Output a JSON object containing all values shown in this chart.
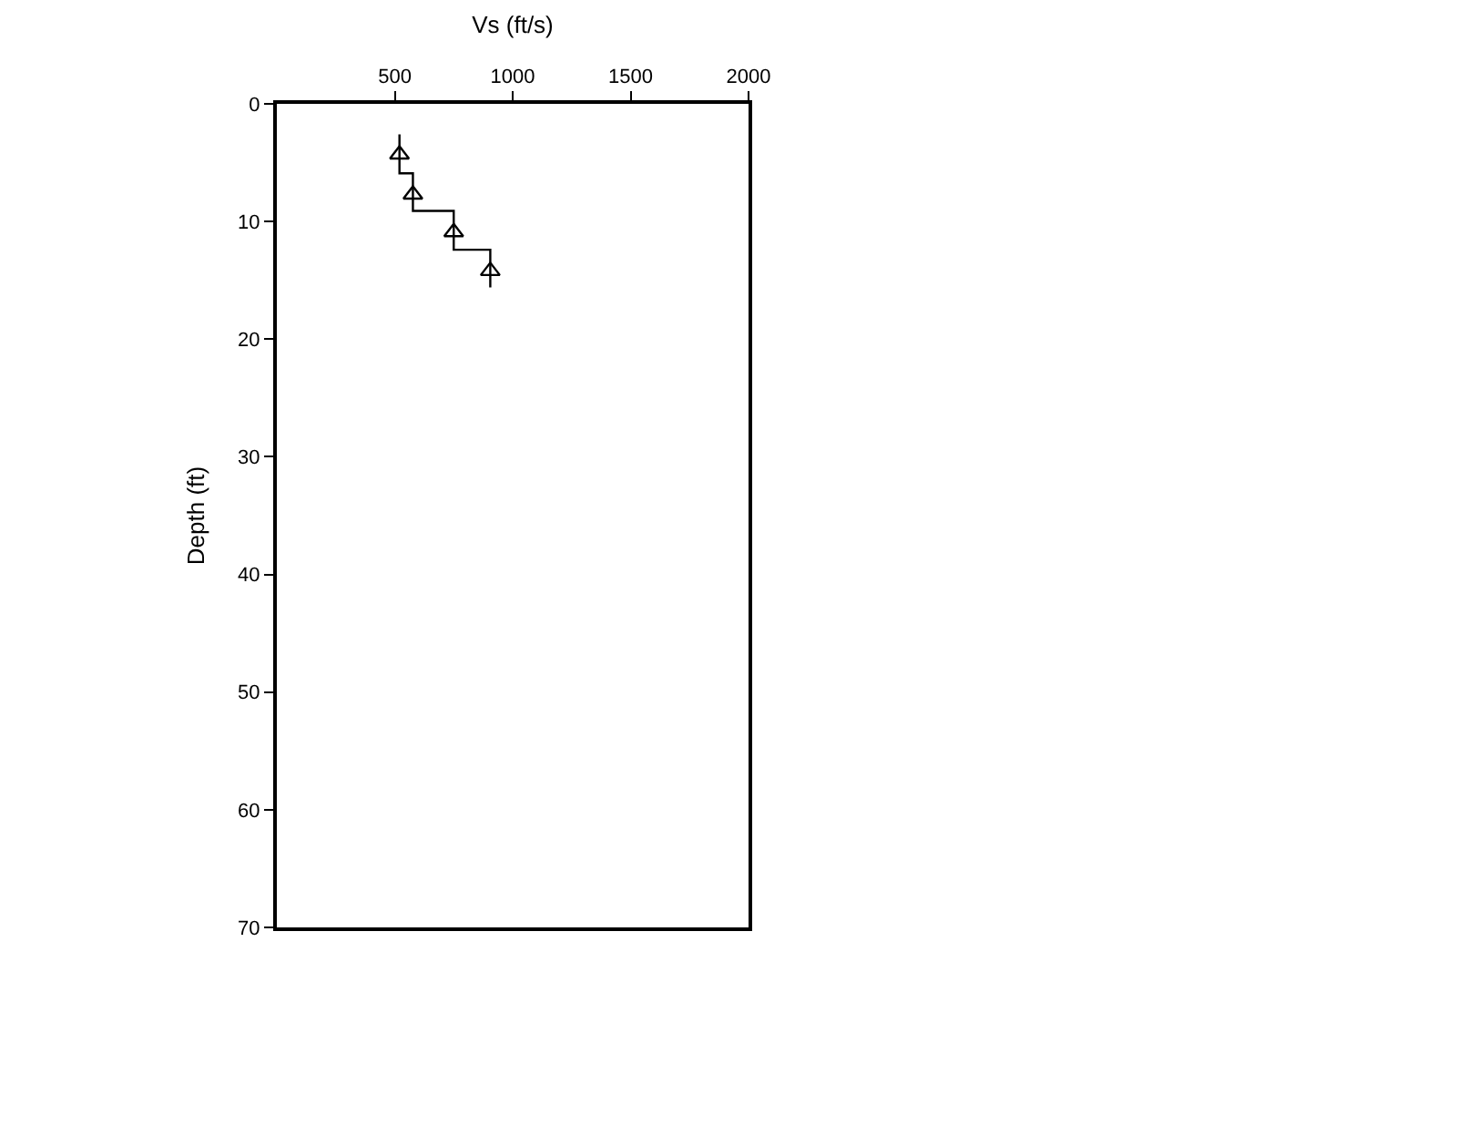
{
  "chart_data": {
    "type": "line",
    "xlabel": "Vs (ft/s)",
    "ylabel": "Depth (ft)",
    "xlim": [
      0,
      2000
    ],
    "xticks": [
      500,
      1000,
      1500,
      2000
    ],
    "ylim": [
      70,
      0
    ],
    "yticks": [
      0,
      10,
      20,
      30,
      40,
      50,
      60,
      70
    ],
    "series": [
      {
        "color": "#000000",
        "marker": "none",
        "x": [
          520,
          520,
          577,
          577,
          750,
          750,
          905,
          905
        ],
        "values": [
          2.6,
          5.9,
          5.9,
          9.1,
          9.1,
          12.4,
          12.4,
          15.6
        ]
      },
      {
        "type": "scatter",
        "color": "#000000",
        "marker": "triangle",
        "x": [
          520,
          577,
          750,
          905
        ],
        "values": [
          4.3,
          7.7,
          10.9,
          14.2
        ]
      }
    ]
  }
}
